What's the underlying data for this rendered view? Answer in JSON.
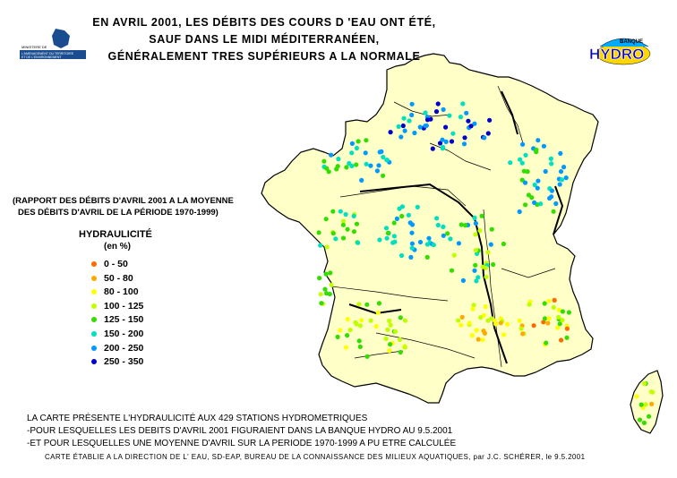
{
  "title": {
    "line1": "EN AVRIL 2001, LES DÉBITS DES COURS D 'EAU ONT ÉTÉ,",
    "line2": "SAUF DANS LE MIDI MÉDITERRANÉEN,",
    "line3": "GÉNÉRALEMENT TRES SUPÉRIEURS A LA NORMALE"
  },
  "ratio_note": {
    "line1": "(RAPPORT DES DÉBITS D'AVRIL 2001 A LA MOYENNE",
    "line2": "DES DÉBITS D'AVRIL DE LA PÉRIODE 1970-1999)"
  },
  "legend": {
    "title": "HYDRAULICITÉ",
    "unit": "(en %)",
    "items": [
      {
        "label": "0  -  50",
        "color": "#ff6a00"
      },
      {
        "label": "50  -  80",
        "color": "#ffaa00"
      },
      {
        "label": "80  - 100",
        "color": "#ffff00"
      },
      {
        "label": "100  - 125",
        "color": "#bfff00"
      },
      {
        "label": "125  - 150",
        "color": "#33dd00"
      },
      {
        "label": "150  - 200",
        "color": "#00e0c0"
      },
      {
        "label": "200  - 250",
        "color": "#0099ff"
      },
      {
        "label": "250  - 350",
        "color": "#0000cc"
      }
    ]
  },
  "footnotes": {
    "line1": "LA CARTE PRÉSENTE L'HYDRAULICITÉ AUX 429 STATIONS HYDROMETRIQUES",
    "line2": "-POUR LESQUELLES LES DEBITS D'AVRIL 2001 FIGURAIENT DANS LA BANQUE HYDRO AU 9.5.2001",
    "line3": "-ET POUR LESQUELLES UNE MOYENNE D'AVRIL SUR LA PERIODE 1970-1999 A PU ETRE CALCULÉE"
  },
  "credit": "CARTE  ÉTABLIE  A  LA  DIRECTION  DE  L' EAU, SD-EAP, BUREAU DE LA CONNAISSANCE DES MILIEUX  AQUATIQUES, par  J.C. SCHÉRER, le 9.5.2001",
  "logo": {
    "banque": "BANQUE",
    "hydro": "HYDRO",
    "ministry_line1": "MINISTERE DE",
    "ministry_line2": "L'AMENAGEMENT DU TERRITOIRE",
    "ministry_line3": "ET DE L'ENVIRONNEMENT"
  },
  "colors": {
    "land": "#ffffc8",
    "river": "#000000",
    "border": "#000000"
  }
}
